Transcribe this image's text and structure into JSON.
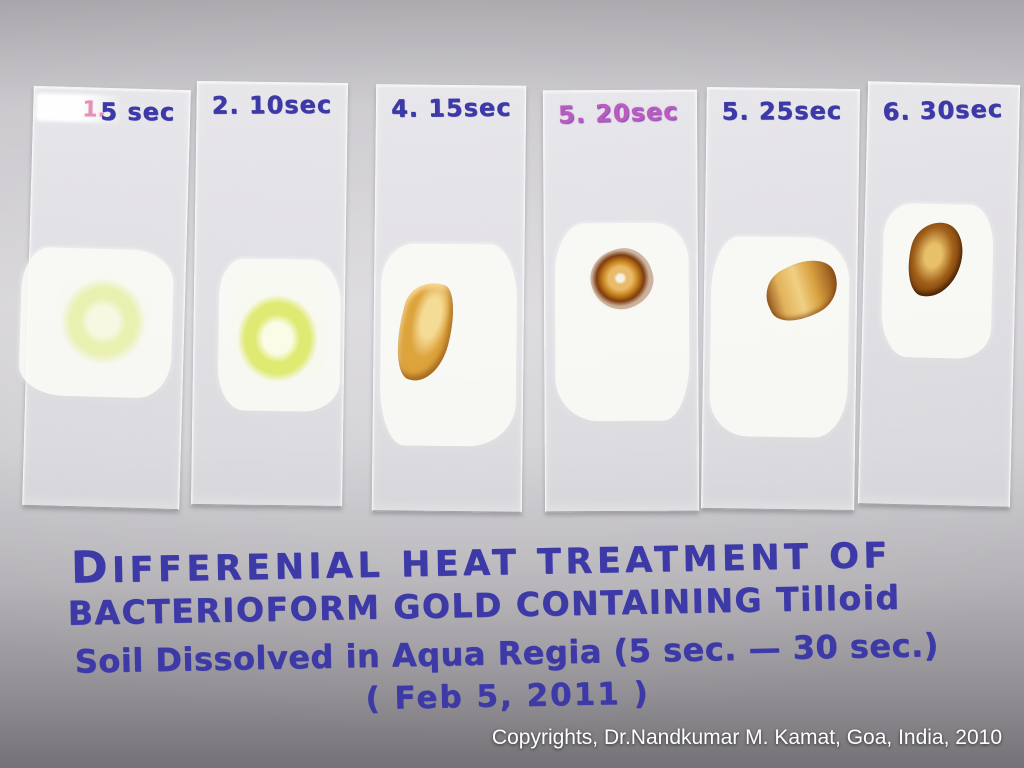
{
  "slides": [
    {
      "prefix": "1.",
      "label": "5 sec",
      "smear_color": "#e9f0b0"
    },
    {
      "prefix": "",
      "label": "2. 10sec",
      "smear_color": "#dfea72"
    },
    {
      "prefix": "",
      "label": "4. 15sec",
      "smear_color": "#dda33c"
    },
    {
      "prefix": "",
      "label": "5. 20sec",
      "smear_color": "#c9871f"
    },
    {
      "prefix": "",
      "label": "5. 25sec",
      "smear_color": "#d9a342"
    },
    {
      "prefix": "",
      "label": "6. 30sec",
      "smear_color": "#a05f19"
    }
  ],
  "caption": {
    "line1": "DIFFERENIAL HEAT TREATMENT OF",
    "line2": "BACTERIOFORM GOLD CONTAINING Tilloid",
    "line3": "Soil Dissolved in Aqua Regia (5 sec. — 30 sec.)",
    "line4": "( Feb 5, 2011 )"
  },
  "watermark": {
    "text": "Copyrights, Dr.Nandkumar M. Kamat, Goa, India, 2010"
  },
  "colors": {
    "ink_blue": "#3d3aa8",
    "ink_pink": "#b85cc0",
    "paper_light": "#d6d4d8",
    "paper_dark": "#747276",
    "watermark_white": "#ffffff"
  }
}
